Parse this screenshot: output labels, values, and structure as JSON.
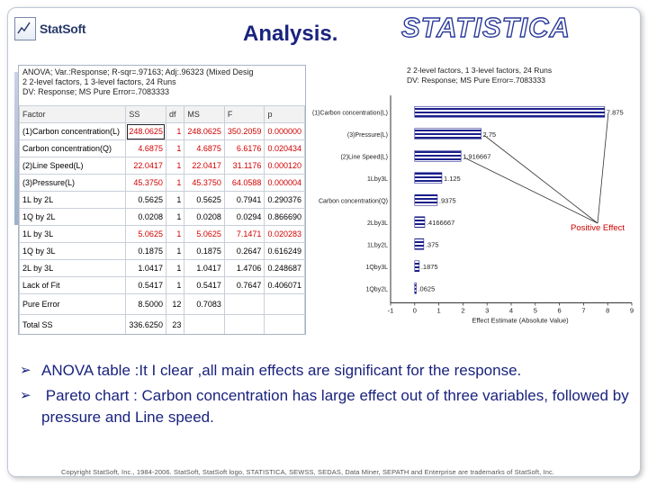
{
  "header": {
    "logo_text": "StatSoft",
    "title": "Analysis.",
    "brand": "STATISTICA"
  },
  "anova": {
    "info_lines": [
      "ANOVA; Var.:Response; R-sqr=.97163; Adj:.96323 (Mixed Desig",
      "2 2-level factors, 1 3-level factors, 24 Runs",
      "DV: Response; MS Pure Error=.7083333"
    ],
    "columns": [
      "Factor",
      "SS",
      "df",
      "MS",
      "F",
      "p"
    ],
    "rows": [
      {
        "factor": "(1)Carbon concentration(L)",
        "ss": "248.0625",
        "df": "1",
        "ms": "248.0625",
        "f": "350.2059",
        "p": "0.000000",
        "sig": true
      },
      {
        "factor": "Carbon concentration(Q)",
        "ss": "4.6875",
        "df": "1",
        "ms": "4.6875",
        "f": "6.6176",
        "p": "0.020434",
        "sig": true
      },
      {
        "factor": "(2)Line Speed(L)",
        "ss": "22.0417",
        "df": "1",
        "ms": "22.0417",
        "f": "31.1176",
        "p": "0.000120",
        "sig": true
      },
      {
        "factor": "(3)Pressure(L)",
        "ss": "45.3750",
        "df": "1",
        "ms": "45.3750",
        "f": "64.0588",
        "p": "0.000004",
        "sig": true
      },
      {
        "factor": "1L by 2L",
        "ss": "0.5625",
        "df": "1",
        "ms": "0.5625",
        "f": "0.7941",
        "p": "0.290376",
        "sig": false
      },
      {
        "factor": "1Q by 2L",
        "ss": "0.0208",
        "df": "1",
        "ms": "0.0208",
        "f": "0.0294",
        "p": "0.866690",
        "sig": false
      },
      {
        "factor": "1L by 3L",
        "ss": "5.0625",
        "df": "1",
        "ms": "5.0625",
        "f": "7.1471",
        "p": "0.020283",
        "sig": true
      },
      {
        "factor": "1Q by 3L",
        "ss": "0.1875",
        "df": "1",
        "ms": "0.1875",
        "f": "0.2647",
        "p": "0.616249",
        "sig": false
      },
      {
        "factor": "2L by 3L",
        "ss": "1.0417",
        "df": "1",
        "ms": "1.0417",
        "f": "1.4706",
        "p": "0.248687",
        "sig": false
      },
      {
        "factor": "Lack of Fit",
        "ss": "0.5417",
        "df": "1",
        "ms": "0.5417",
        "f": "0.7647",
        "p": "0.406071",
        "sig": false
      },
      {
        "factor": "Pure Error",
        "ss": "8.5000",
        "df": "12",
        "ms": "0.7083",
        "f": "",
        "p": "",
        "sig": false
      },
      {
        "factor": "Total SS",
        "ss": "336.6250",
        "df": "23",
        "ms": "",
        "f": "",
        "p": "",
        "sig": false
      }
    ]
  },
  "chart_data": {
    "type": "bar",
    "orientation": "horizontal",
    "title_lines": [
      "2 2-level factors, 1 3-level factors, 24 Runs",
      "DV: Response; MS Pure Error=.7083333"
    ],
    "categories": [
      "(1)Carbon concentration(L)",
      "(3)Pressure(L)",
      "(2)Line Speed(L)",
      "1Lby3L",
      "Carbon concentration(Q)",
      "2Lby3L",
      "1Lby2L",
      "1Qby3L",
      "1Qby2L"
    ],
    "values": [
      7.875,
      2.75,
      1.916667,
      1.125,
      0.9375,
      0.4166667,
      0.375,
      0.1875,
      0.0625
    ],
    "value_labels": [
      "7.875",
      "2.75",
      "1.916667",
      "1.125",
      ".9375",
      ".4166667",
      ".375",
      ".1875",
      ".0625"
    ],
    "xlabel": "Effect Estimate (Absolute Value)",
    "xlim": [
      -1,
      9
    ],
    "xticks": [
      -1,
      0,
      1,
      2,
      3,
      4,
      5,
      6,
      7,
      8,
      9
    ],
    "annotation": "Positive Effect",
    "bar_color": "#1b1f8a",
    "annotation_color": "#cc0000"
  },
  "bullets": [
    {
      "term": "ANOVA table",
      "text": " :It I clear ,all main effects are  significant for the response."
    },
    {
      "term": "Pareto chart",
      "text": " : Carbon concentration has large effect out of three variables, followed by pressure and Line speed."
    }
  ],
  "footer": "Copyright StatSoft, Inc., 1984-2006. StatSoft, StatSoft logo, STATISTICA, SEWSS, SEDAS, Data Miner, SEPATH and Enterprise are trademarks of StatSoft, Inc."
}
